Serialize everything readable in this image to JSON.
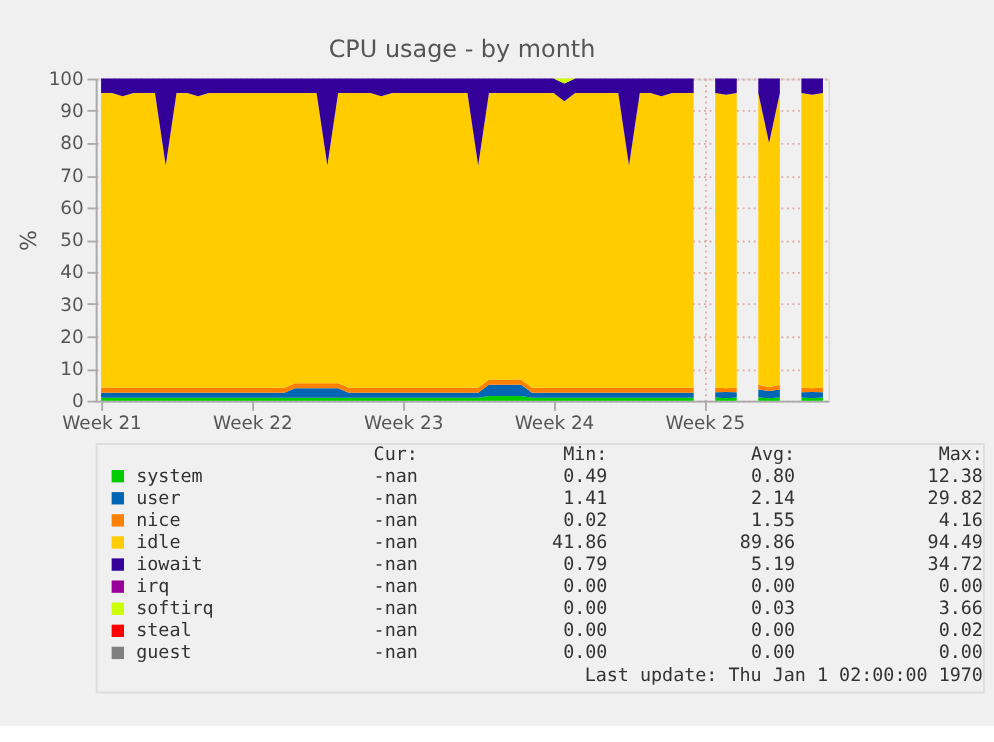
{
  "chart_data": {
    "type": "area",
    "stacked": true,
    "title": "CPU usage - by month",
    "ylabel": "%",
    "categories": [
      "Week 21",
      null,
      null,
      null,
      null,
      null,
      null,
      null,
      null,
      null,
      null,
      null,
      null,
      null,
      "Week 22",
      null,
      null,
      null,
      null,
      null,
      null,
      null,
      null,
      null,
      null,
      null,
      null,
      null,
      "Week 23",
      null,
      null,
      null,
      null,
      null,
      null,
      null,
      null,
      null,
      null,
      null,
      null,
      null,
      "Week 24",
      null,
      null,
      null,
      null,
      null,
      null,
      null,
      null,
      null,
      null,
      null,
      null,
      null,
      "Week 25",
      null,
      null,
      null,
      null,
      null,
      null,
      null,
      null,
      null,
      null,
      null
    ],
    "series": [
      {
        "name": "system",
        "color": "#00cc00",
        "values": [
          0.9,
          0.9,
          0.9,
          0.9,
          0.9,
          0.9,
          0.9,
          0.9,
          0.9,
          0.9,
          0.9,
          0.9,
          0.9,
          0.9,
          0.9,
          0.9,
          0.9,
          0.9,
          0.9,
          0.9,
          0.9,
          0.9,
          0.9,
          0.9,
          0.9,
          0.9,
          0.9,
          0.9,
          0.9,
          0.9,
          0.9,
          0.9,
          0.9,
          0.9,
          0.9,
          0.9,
          1.5,
          1.5,
          1.5,
          1.5,
          0.9,
          0.9,
          0.9,
          0.9,
          0.9,
          0.9,
          0.9,
          0.9,
          0.9,
          0.9,
          0.9,
          0.9,
          0.9,
          0.9,
          0.9,
          0.9,
          null,
          1.0,
          0.8,
          1.0,
          null,
          1.0,
          0.8,
          1.0,
          null,
          1.0,
          0.8,
          1.0
        ]
      },
      {
        "name": "user",
        "color": "#0066b3",
        "values": [
          1.6,
          1.6,
          1.6,
          1.6,
          1.6,
          1.6,
          1.6,
          1.6,
          1.6,
          1.6,
          1.6,
          1.6,
          1.6,
          1.6,
          1.6,
          1.6,
          1.6,
          1.6,
          3.0,
          3.0,
          3.0,
          3.0,
          3.0,
          1.6,
          1.6,
          1.6,
          1.6,
          1.6,
          1.6,
          1.6,
          1.6,
          1.6,
          1.6,
          1.6,
          1.6,
          1.6,
          3.5,
          3.5,
          3.5,
          3.5,
          1.6,
          1.6,
          1.6,
          1.6,
          1.6,
          1.6,
          1.6,
          1.6,
          1.6,
          1.6,
          1.6,
          1.6,
          1.6,
          1.6,
          1.6,
          1.6,
          null,
          1.6,
          1.9,
          1.6,
          null,
          2.5,
          2.2,
          2.5,
          null,
          1.6,
          1.9,
          1.6
        ]
      },
      {
        "name": "nice",
        "color": "#ff8000",
        "values": [
          1.5,
          1.5,
          1.5,
          1.5,
          1.5,
          1.5,
          1.5,
          1.5,
          1.5,
          1.5,
          1.5,
          1.5,
          1.5,
          1.5,
          1.5,
          1.5,
          1.5,
          1.5,
          1.5,
          1.5,
          1.5,
          1.5,
          1.5,
          1.5,
          1.5,
          1.5,
          1.5,
          1.5,
          1.5,
          1.5,
          1.5,
          1.5,
          1.5,
          1.5,
          1.5,
          1.5,
          1.5,
          1.5,
          1.5,
          1.5,
          1.5,
          1.5,
          1.5,
          1.5,
          1.5,
          1.5,
          1.5,
          1.5,
          1.5,
          1.5,
          1.5,
          1.5,
          1.5,
          1.5,
          1.5,
          1.5,
          null,
          1.5,
          1.2,
          1.5,
          null,
          1.5,
          1.2,
          1.5,
          null,
          1.5,
          1.2,
          1.5
        ]
      },
      {
        "name": "idle",
        "color": "#ffcc00",
        "values": [
          91.5,
          91.5,
          90.5,
          91.5,
          91.5,
          91.5,
          69.0,
          91.5,
          91.5,
          90.5,
          91.5,
          91.5,
          91.5,
          91.5,
          91.5,
          91.5,
          91.5,
          91.5,
          90.1,
          90.1,
          90.1,
          67.6,
          90.1,
          91.5,
          91.5,
          91.5,
          90.5,
          91.5,
          91.5,
          91.5,
          91.5,
          91.5,
          91.5,
          91.5,
          91.5,
          69.0,
          89.0,
          89.0,
          89.0,
          89.0,
          91.5,
          91.5,
          91.5,
          89.0,
          91.5,
          91.5,
          91.5,
          91.5,
          91.5,
          69.0,
          91.5,
          91.5,
          90.5,
          91.5,
          91.5,
          91.5,
          null,
          91.4,
          91.1,
          91.4,
          null,
          90.5,
          75.8,
          90.5,
          null,
          91.4,
          91.1,
          91.4
        ]
      },
      {
        "name": "iowait",
        "color": "#330099",
        "values": [
          4.5,
          4.5,
          5.5,
          4.5,
          4.5,
          4.5,
          27,
          4.5,
          4.5,
          5.5,
          4.5,
          4.5,
          4.5,
          4.5,
          4.5,
          4.5,
          4.5,
          4.5,
          4.5,
          4.5,
          4.5,
          27,
          4.5,
          4.5,
          4.5,
          4.5,
          5.5,
          4.5,
          4.5,
          4.5,
          4.5,
          4.5,
          4.5,
          4.5,
          4.5,
          27,
          4.5,
          4.5,
          4.5,
          4.5,
          4.5,
          4.5,
          4.5,
          5.5,
          4.5,
          4.5,
          4.5,
          4.5,
          4.5,
          27,
          4.5,
          4.5,
          5.5,
          4.5,
          4.5,
          4.5,
          null,
          4.5,
          5.0,
          4.5,
          null,
          4.5,
          20,
          4.5,
          null,
          4.5,
          5.0,
          4.5
        ]
      },
      {
        "name": "irq",
        "color": "#990099",
        "values": [
          null,
          null,
          null,
          null,
          null,
          null,
          null,
          null,
          null,
          null,
          null,
          null,
          null,
          null,
          null,
          null,
          null,
          null,
          null,
          null,
          null,
          null,
          null,
          null,
          null,
          null,
          null,
          null,
          null,
          null,
          null,
          null,
          null,
          null,
          null,
          null,
          null,
          null,
          null,
          null,
          null,
          null,
          null,
          null,
          null,
          null,
          null,
          null,
          null,
          null,
          null,
          null,
          null,
          null,
          null,
          null,
          null,
          null,
          null,
          null,
          null,
          null,
          null,
          null,
          null,
          null,
          null,
          null
        ]
      },
      {
        "name": "softirq",
        "color": "#ccff00",
        "values": [
          null,
          null,
          null,
          null,
          null,
          null,
          null,
          null,
          null,
          null,
          null,
          null,
          null,
          null,
          null,
          null,
          null,
          null,
          null,
          null,
          null,
          null,
          null,
          null,
          null,
          null,
          null,
          null,
          null,
          null,
          null,
          null,
          null,
          null,
          null,
          null,
          null,
          null,
          null,
          null,
          null,
          null,
          0,
          1.5,
          0,
          null,
          null,
          null,
          null,
          null,
          null,
          null,
          null,
          null,
          null,
          null,
          null,
          null,
          null,
          null,
          null,
          null,
          null,
          null,
          null,
          null,
          null,
          null
        ]
      },
      {
        "name": "steal",
        "color": "#ff0000",
        "values": [
          null,
          null,
          null,
          null,
          null,
          null,
          null,
          null,
          null,
          null,
          null,
          null,
          null,
          null,
          null,
          null,
          null,
          null,
          null,
          null,
          null,
          null,
          null,
          null,
          null,
          null,
          null,
          null,
          null,
          null,
          null,
          null,
          null,
          null,
          null,
          null,
          null,
          null,
          null,
          null,
          null,
          null,
          null,
          null,
          null,
          null,
          null,
          null,
          null,
          null,
          null,
          null,
          null,
          null,
          null,
          null,
          null,
          null,
          null,
          null,
          null,
          null,
          null,
          null,
          null,
          null,
          null,
          null
        ]
      },
      {
        "name": "guest",
        "color": "#808080",
        "values": [
          null,
          null,
          null,
          null,
          null,
          null,
          null,
          null,
          null,
          null,
          null,
          null,
          null,
          null,
          null,
          null,
          null,
          null,
          null,
          null,
          null,
          null,
          null,
          null,
          null,
          null,
          null,
          null,
          null,
          null,
          null,
          null,
          null,
          null,
          null,
          null,
          null,
          null,
          null,
          null,
          null,
          null,
          null,
          null,
          null,
          null,
          null,
          null,
          null,
          null,
          null,
          null,
          null,
          null,
          null,
          null,
          null,
          null,
          null,
          null,
          null,
          null,
          null,
          null,
          null,
          null,
          null,
          null
        ]
      }
    ],
    "ylim": [
      0,
      100
    ],
    "yticks": [
      0,
      10,
      20,
      30,
      40,
      50,
      60,
      70,
      80,
      90,
      100
    ],
    "grid": true,
    "legend": "bottom",
    "annotations": [
      "Cur:",
      "Min:",
      "Avg:",
      "Max:",
      "-nan",
      "0.49",
      "0.80",
      "12.38",
      "-nan",
      "1.41",
      "2.14",
      "29.82",
      "-nan",
      "0.02",
      "1.55",
      "4.16",
      "-nan",
      "41.86",
      "89.86",
      "94.49",
      "-nan",
      "0.79",
      "5.19",
      "34.72",
      "-nan",
      "0.00",
      "0.00",
      "0.00",
      "-nan",
      "0.00",
      "0.03",
      "3.66",
      "-nan",
      "0.00",
      "0.00",
      "0.02",
      "-nan",
      "0.00",
      "0.00",
      "0.00",
      "Last update: Thu Jan  1 02:00:00 1970"
    ]
  }
}
